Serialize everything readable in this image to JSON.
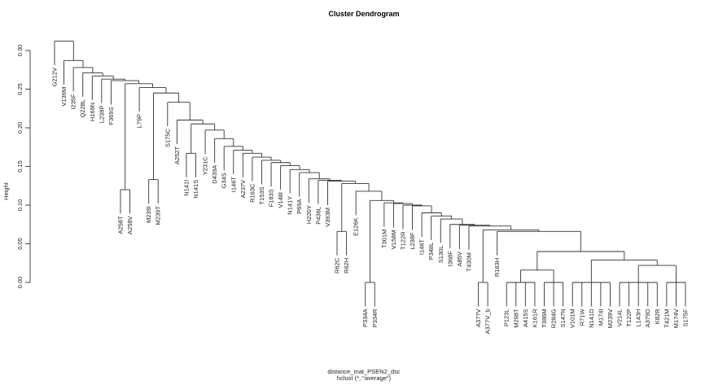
{
  "chart_data": {
    "type": "dendrogram",
    "title": "Cluster Dendrogram",
    "ylabel": "Height",
    "xlabel": "distance_mat_PSEN2_dsc",
    "sublabel": "hclust (*, \"average\")",
    "ylim": [
      0,
      0.31
    ],
    "yticks": [
      "0.00",
      "0.05",
      "0.10",
      "0.15",
      "0.20",
      "0.25",
      "0.30"
    ],
    "hang": 0.031,
    "labels": [
      "G212V",
      "V139M",
      "I235F",
      "Q228L",
      "H169N",
      "L238P",
      "F369S",
      "A258T",
      "A258V",
      "L79P",
      "M239I",
      "M239T",
      "S175C",
      "A252T",
      "N141I",
      "N141S",
      "Y231C",
      "D439A",
      "G34S",
      "I146T",
      "A237V",
      "R163C",
      "T153S",
      "F183S",
      "V148I",
      "N141Y",
      "P69A",
      "H220Y",
      "P436L",
      "V393M",
      "R62C",
      "R62H",
      "E126K",
      "P334A",
      "P334R",
      "T301M",
      "V158M",
      "T122R",
      "L238F",
      "I146T",
      "P348L",
      "S130L",
      "I368F",
      "A85V",
      "T430M",
      "A377V",
      "A377V_b",
      "R163H",
      "P123L",
      "M298T",
      "A415S",
      "K161R",
      "T386M",
      "R284G",
      "S147N",
      "V101M",
      "R71W",
      "N141D",
      "M174I",
      "M239V",
      "V214L",
      "T122P",
      "L143H",
      "A379D",
      "K82R",
      "T421M",
      "M174V",
      "S175F"
    ],
    "spine": [
      [
        0,
        0.312
      ],
      [
        1,
        0.287
      ],
      [
        2,
        0.278
      ],
      [
        3,
        0.271
      ],
      [
        4,
        0.267
      ],
      [
        5,
        0.263
      ],
      [
        6,
        0.261
      ],
      [
        {
          "h": 0.12,
          "c": [
            7,
            8
          ]
        },
        0.257
      ],
      [
        9,
        0.252
      ],
      [
        {
          "h": 0.133,
          "c": [
            10,
            11
          ]
        },
        0.245
      ],
      [
        12,
        0.233
      ],
      [
        13,
        0.21
      ],
      [
        {
          "h": 0.167,
          "c": [
            14,
            15
          ]
        },
        0.205
      ],
      [
        16,
        0.197
      ],
      [
        17,
        0.186
      ],
      [
        18,
        0.176
      ],
      [
        19,
        0.171
      ],
      [
        20,
        0.167
      ],
      [
        21,
        0.162
      ],
      [
        22,
        0.158
      ],
      [
        23,
        0.155
      ],
      [
        24,
        0.151
      ],
      [
        25,
        0.146
      ],
      [
        26,
        0.142
      ],
      [
        27,
        0.134
      ],
      [
        28,
        0.132
      ],
      [
        29,
        0.131
      ],
      [
        {
          "h": 0.066,
          "c": [
            30,
            31
          ]
        },
        0.128
      ],
      [
        32,
        0.118
      ],
      [
        {
          "h": 0,
          "c": [
            33,
            34
          ]
        },
        0.106
      ],
      [
        35,
        0.103
      ],
      [
        36,
        0.102
      ],
      [
        37,
        0.1
      ],
      [
        38,
        0.099
      ],
      [
        39,
        0.09
      ],
      [
        40,
        0.086
      ],
      [
        41,
        0.082
      ],
      [
        42,
        0.075
      ],
      [
        43,
        0.074
      ],
      [
        44,
        0.073
      ]
    ],
    "tail": {
      "h": 0.068,
      "c": [
        {
          "h": 0,
          "c": [
            45,
            46
          ]
        },
        {
          "h": 0.066,
          "c": [
            47,
            {
              "h": 0.04,
              "c": [
                {
                  "h": 0.016,
                  "c": [
                    {
                      "h": 0,
                      "c": [
                        48,
                        49,
                        50,
                        51
                      ]
                    },
                    {
                      "h": 0,
                      "c": [
                        52,
                        53,
                        54
                      ]
                    }
                  ]
                },
                {
                  "h": 0.029,
                  "c": [
                    {
                      "h": 0,
                      "c": [
                        55,
                        56,
                        57,
                        58,
                        59
                      ]
                    },
                    {
                      "h": 0.022,
                      "c": [
                        {
                          "h": 0,
                          "c": [
                            60,
                            61,
                            62,
                            63,
                            64
                          ]
                        },
                        {
                          "h": 0,
                          "c": [
                            65,
                            66,
                            67
                          ]
                        }
                      ]
                    }
                  ]
                }
              ]
            }
          ]
        }
      ]
    }
  }
}
